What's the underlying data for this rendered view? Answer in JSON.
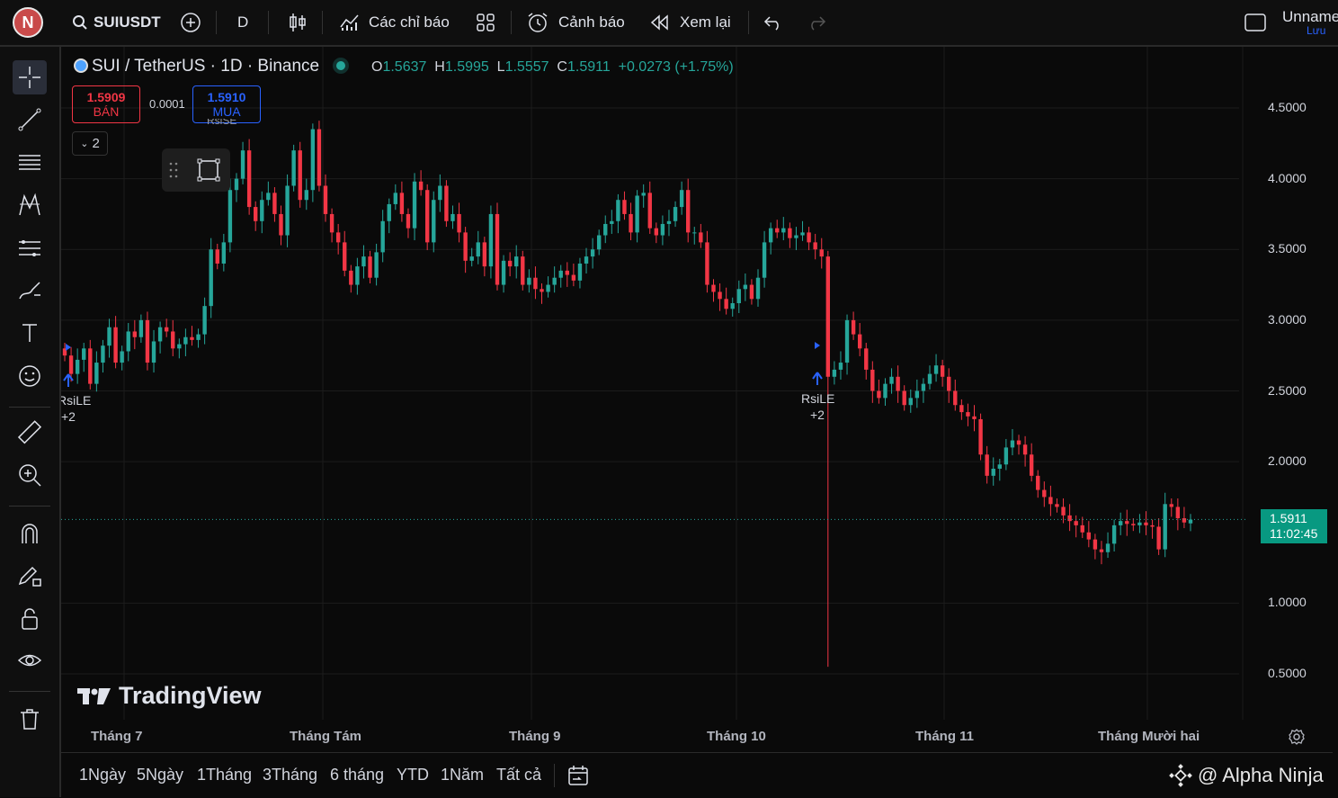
{
  "topbar": {
    "avatar_letter": "N",
    "symbol": "SUIUSDT",
    "interval": "D",
    "indicators_label": "Các chỉ báo",
    "alerts_label": "Cảnh báo",
    "replay_label": "Xem lại",
    "layout_name": "Unname",
    "layout_save": "Lưu"
  },
  "legend": {
    "title": "SUI / TetherUS · 1D · Binance",
    "o_key": "O",
    "o_val": "1.5637",
    "h_key": "H",
    "h_val": "1.5995",
    "l_key": "L",
    "l_val": "1.5557",
    "c_key": "C",
    "c_val": "1.5911",
    "change": "+0.0273 (+1.75%)",
    "sell_price": "1.5909",
    "sell_label": "BÁN",
    "spread": "0.0001",
    "buy_price": "1.5910",
    "buy_label": "MUA",
    "collapse_count": "2"
  },
  "price_axis": [
    "4.5000",
    "4.0000",
    "3.5000",
    "3.0000",
    "2.5000",
    "2.0000",
    "1.0000",
    "0.5000"
  ],
  "last_price": {
    "price": "1.5911",
    "countdown": "11:02:45"
  },
  "time_axis": [
    "Tháng 7",
    "Tháng Tám",
    "Tháng 9",
    "Tháng 10",
    "Tháng 11",
    "Tháng Mười hai"
  ],
  "markers": [
    {
      "label": "RsiLE",
      "count": "+2"
    },
    {
      "label": "RsiLE",
      "count": "+2"
    },
    {
      "label": "RsiSE"
    }
  ],
  "watermark": "TradingView",
  "ranges": [
    "1Ngày",
    "5Ngày",
    "1Tháng",
    "3Tháng",
    "6 tháng",
    "YTD",
    "1Năm",
    "Tất cả"
  ],
  "overlay_text": "@ Alpha Ninja",
  "chart_data": {
    "type": "candlestick",
    "title": "SUI / TetherUS · 1D · Binance",
    "ylim": [
      0.35,
      4.8
    ],
    "x_ticks": [
      "Tháng 7",
      "Tháng Tám",
      "Tháng 9",
      "Tháng 10",
      "Tháng 11",
      "Tháng Mười hai"
    ],
    "y_ticks": [
      4.5,
      4.0,
      3.5,
      3.0,
      2.5,
      2.0,
      1.0,
      0.5
    ],
    "grid": true,
    "colors": {
      "up": "#26a69a",
      "down": "#f23645"
    },
    "close": [
      2.75,
      2.62,
      2.72,
      2.8,
      2.55,
      2.7,
      2.82,
      2.95,
      2.7,
      2.78,
      2.92,
      2.88,
      3.0,
      2.7,
      2.85,
      2.95,
      2.92,
      2.8,
      2.83,
      2.88,
      2.86,
      2.9,
      3.1,
      3.5,
      3.4,
      3.55,
      3.92,
      4.0,
      4.2,
      3.8,
      3.7,
      3.85,
      3.9,
      3.75,
      3.6,
      3.95,
      4.2,
      3.85,
      3.92,
      4.35,
      3.95,
      3.75,
      3.62,
      3.55,
      3.35,
      3.25,
      3.38,
      3.45,
      3.3,
      3.48,
      3.7,
      3.82,
      3.9,
      3.75,
      3.65,
      3.98,
      3.92,
      3.55,
      3.85,
      3.95,
      3.7,
      3.75,
      3.62,
      3.42,
      3.45,
      3.55,
      3.38,
      3.75,
      3.25,
      3.42,
      3.38,
      3.45,
      3.25,
      3.3,
      3.22,
      3.2,
      3.25,
      3.3,
      3.35,
      3.32,
      3.28,
      3.4,
      3.45,
      3.5,
      3.6,
      3.68,
      3.7,
      3.85,
      3.75,
      3.62,
      3.88,
      3.9,
      3.65,
      3.6,
      3.68,
      3.7,
      3.8,
      3.92,
      3.62,
      3.62,
      3.55,
      3.25,
      3.2,
      3.15,
      3.08,
      3.12,
      3.22,
      3.25,
      3.15,
      3.3,
      3.55,
      3.65,
      3.62,
      3.65,
      3.58,
      3.6,
      3.62,
      3.55,
      3.5,
      3.45,
      2.6,
      2.65,
      2.7,
      3.0,
      2.9,
      2.8,
      2.65,
      2.5,
      2.45,
      2.55,
      2.6,
      2.5,
      2.4,
      2.45,
      2.5,
      2.55,
      2.62,
      2.68,
      2.6,
      2.5,
      2.4,
      2.35,
      2.32,
      2.3,
      2.05,
      1.9,
      1.95,
      1.98,
      2.1,
      2.15,
      2.12,
      2.05,
      1.9,
      1.8,
      1.75,
      1.7,
      1.68,
      1.62,
      1.58,
      1.55,
      1.5,
      1.45,
      1.38,
      1.36,
      1.42,
      1.55,
      1.58,
      1.56,
      1.55,
      1.57,
      1.55,
      1.54,
      1.38,
      1.7,
      1.68,
      1.6,
      1.57,
      1.59
    ]
  }
}
